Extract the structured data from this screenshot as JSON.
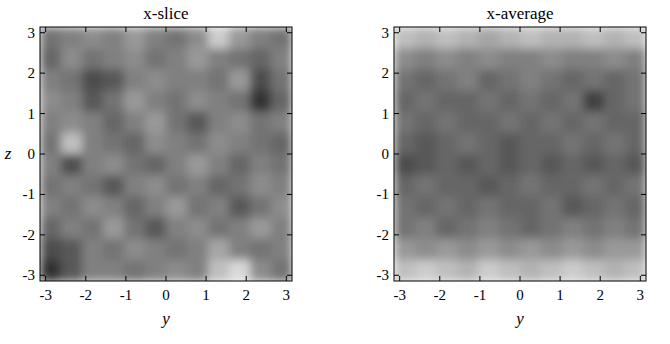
{
  "chart_data": [
    {
      "type": "heatmap",
      "title": "x-slice",
      "xlabel": "y",
      "ylabel": "z",
      "color": "gray",
      "xlim": [
        -3.1416,
        3.1416
      ],
      "ylim": [
        -3.1416,
        3.1416
      ],
      "xticks": [
        -3,
        -2,
        -1,
        0,
        1,
        2,
        3
      ],
      "yticks": [
        -3,
        -2,
        -1,
        0,
        1,
        2,
        3
      ],
      "zlim": [
        0,
        1
      ],
      "cells": [
        [
          0.45,
          0.5,
          0.55,
          0.5,
          0.6,
          0.5,
          0.45,
          0.55,
          0.8,
          0.6,
          0.5,
          0.45
        ],
        [
          0.4,
          0.55,
          0.45,
          0.5,
          0.55,
          0.45,
          0.5,
          0.6,
          0.5,
          0.45,
          0.4,
          0.5
        ],
        [
          0.5,
          0.45,
          0.3,
          0.35,
          0.5,
          0.55,
          0.5,
          0.5,
          0.45,
          0.6,
          0.3,
          0.45
        ],
        [
          0.55,
          0.5,
          0.35,
          0.45,
          0.6,
          0.5,
          0.45,
          0.55,
          0.5,
          0.45,
          0.2,
          0.4
        ],
        [
          0.5,
          0.55,
          0.5,
          0.4,
          0.5,
          0.6,
          0.45,
          0.35,
          0.5,
          0.55,
          0.45,
          0.5
        ],
        [
          0.45,
          0.75,
          0.5,
          0.45,
          0.4,
          0.55,
          0.5,
          0.45,
          0.55,
          0.5,
          0.45,
          0.4
        ],
        [
          0.5,
          0.3,
          0.5,
          0.55,
          0.45,
          0.4,
          0.5,
          0.6,
          0.5,
          0.4,
          0.5,
          0.45
        ],
        [
          0.45,
          0.5,
          0.45,
          0.35,
          0.5,
          0.55,
          0.45,
          0.5,
          0.4,
          0.45,
          0.55,
          0.5
        ],
        [
          0.5,
          0.45,
          0.55,
          0.5,
          0.4,
          0.5,
          0.6,
          0.45,
          0.5,
          0.35,
          0.45,
          0.55
        ],
        [
          0.4,
          0.5,
          0.45,
          0.6,
          0.45,
          0.35,
          0.5,
          0.55,
          0.45,
          0.5,
          0.6,
          0.5
        ],
        [
          0.3,
          0.35,
          0.5,
          0.45,
          0.55,
          0.5,
          0.45,
          0.5,
          0.65,
          0.5,
          0.45,
          0.5
        ],
        [
          0.2,
          0.35,
          0.5,
          0.5,
          0.45,
          0.5,
          0.55,
          0.5,
          0.75,
          0.85,
          0.55,
          0.45
        ]
      ]
    },
    {
      "type": "heatmap",
      "title": "x-average",
      "xlabel": "y",
      "color": "gray",
      "xlim": [
        -3.1416,
        3.1416
      ],
      "ylim": [
        -3.1416,
        3.1416
      ],
      "xticks": [
        -3,
        -2,
        -1,
        0,
        1,
        2,
        3
      ],
      "yticks": [
        -3,
        -2,
        -1,
        0,
        1,
        2,
        3
      ],
      "zlim": [
        0,
        1
      ],
      "cells": [
        [
          0.75,
          0.7,
          0.75,
          0.7,
          0.65,
          0.7,
          0.75,
          0.7,
          0.7,
          0.75,
          0.7,
          0.75
        ],
        [
          0.55,
          0.5,
          0.55,
          0.5,
          0.55,
          0.5,
          0.5,
          0.55,
          0.5,
          0.5,
          0.55,
          0.5
        ],
        [
          0.45,
          0.4,
          0.45,
          0.5,
          0.4,
          0.45,
          0.5,
          0.45,
          0.4,
          0.45,
          0.4,
          0.45
        ],
        [
          0.4,
          0.45,
          0.4,
          0.4,
          0.45,
          0.4,
          0.45,
          0.4,
          0.45,
          0.25,
          0.4,
          0.45
        ],
        [
          0.45,
          0.4,
          0.45,
          0.4,
          0.4,
          0.45,
          0.4,
          0.45,
          0.4,
          0.45,
          0.4,
          0.4
        ],
        [
          0.4,
          0.35,
          0.4,
          0.45,
          0.4,
          0.35,
          0.4,
          0.4,
          0.45,
          0.4,
          0.45,
          0.4
        ],
        [
          0.3,
          0.35,
          0.4,
          0.35,
          0.4,
          0.35,
          0.4,
          0.35,
          0.4,
          0.35,
          0.4,
          0.35
        ],
        [
          0.4,
          0.45,
          0.4,
          0.4,
          0.35,
          0.4,
          0.45,
          0.4,
          0.4,
          0.45,
          0.4,
          0.45
        ],
        [
          0.45,
          0.4,
          0.45,
          0.4,
          0.45,
          0.4,
          0.4,
          0.45,
          0.35,
          0.4,
          0.45,
          0.4
        ],
        [
          0.45,
          0.5,
          0.4,
          0.45,
          0.5,
          0.45,
          0.4,
          0.45,
          0.5,
          0.45,
          0.5,
          0.45
        ],
        [
          0.6,
          0.55,
          0.6,
          0.55,
          0.6,
          0.55,
          0.6,
          0.55,
          0.6,
          0.55,
          0.6,
          0.6
        ],
        [
          0.75,
          0.8,
          0.75,
          0.7,
          0.8,
          0.75,
          0.7,
          0.75,
          0.8,
          0.75,
          0.7,
          0.75
        ]
      ]
    }
  ]
}
